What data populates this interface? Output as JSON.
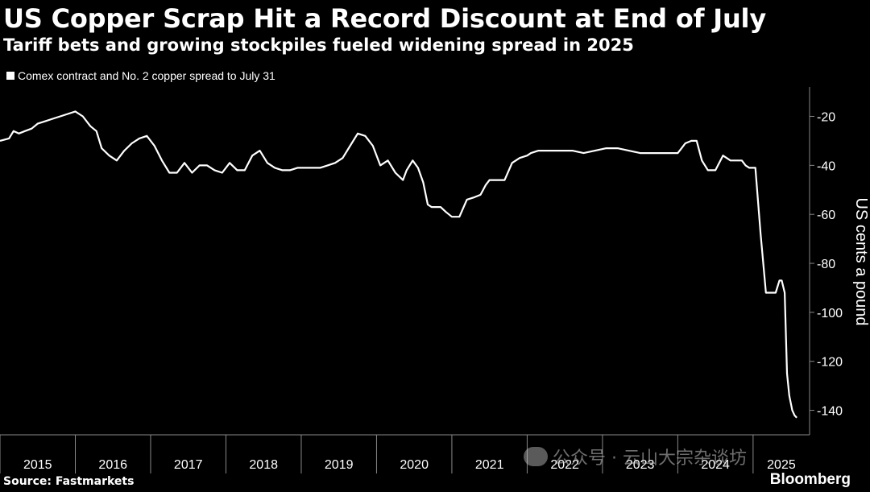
{
  "header": {
    "title": "US Copper Scrap Hit a Record Discount at End of July",
    "subtitle": "Tariff bets and growing stockpiles fueled widening spread in 2025"
  },
  "footer": {
    "source": "Source: Fastmarkets",
    "brand": "Bloomberg"
  },
  "watermark": {
    "text": "公众号 · 云山大宗杂谈坊"
  },
  "colors": {
    "background": "#000000",
    "line": "#ffffff",
    "text": "#ffffff"
  },
  "chart_data": {
    "type": "line",
    "title": "US Copper Scrap Hit a Record Discount at End of July",
    "subtitle": "Tariff bets and growing stockpiles fueled widening spread in 2025",
    "legend": [
      "Comex contract and No. 2 copper spread to July 31"
    ],
    "ylabel": "US cents a pound",
    "xlabel": "",
    "ylim": [
      -150,
      -8
    ],
    "xlim": [
      2015.0,
      2025.75
    ],
    "yticks": [
      -20,
      -40,
      -60,
      -80,
      -100,
      -120,
      -140
    ],
    "xticks": [
      "2015",
      "2016",
      "2017",
      "2018",
      "2019",
      "2020",
      "2021",
      "2022",
      "2023",
      "2024",
      "2025"
    ],
    "series": [
      {
        "name": "Comex contract and No. 2 copper spread to July 31",
        "x": [
          2015.0,
          2015.12,
          2015.18,
          2015.25,
          2015.33,
          2015.42,
          2015.5,
          2015.6,
          2015.7,
          2015.8,
          2015.9,
          2016.0,
          2016.1,
          2016.2,
          2016.28,
          2016.35,
          2016.45,
          2016.55,
          2016.65,
          2016.75,
          2016.85,
          2016.95,
          2017.05,
          2017.15,
          2017.25,
          2017.35,
          2017.45,
          2017.55,
          2017.65,
          2017.75,
          2017.85,
          2017.95,
          2018.05,
          2018.15,
          2018.25,
          2018.35,
          2018.45,
          2018.55,
          2018.65,
          2018.75,
          2018.85,
          2018.95,
          2019.05,
          2019.15,
          2019.25,
          2019.35,
          2019.45,
          2019.55,
          2019.65,
          2019.75,
          2019.85,
          2019.95,
          2020.05,
          2020.15,
          2020.25,
          2020.35,
          2020.4,
          2020.48,
          2020.55,
          2020.62,
          2020.68,
          2020.73,
          2020.78,
          2020.85,
          2020.92,
          2021.0,
          2021.1,
          2021.2,
          2021.3,
          2021.38,
          2021.45,
          2021.5,
          2021.55,
          2021.6,
          2021.7,
          2021.8,
          2021.9,
          2022.0,
          2022.05,
          2022.15,
          2022.3,
          2022.45,
          2022.6,
          2022.75,
          2022.9,
          2023.05,
          2023.2,
          2023.35,
          2023.5,
          2023.65,
          2023.8,
          2023.9,
          2024.0,
          2024.05,
          2024.1,
          2024.18,
          2024.25,
          2024.32,
          2024.4,
          2024.5,
          2024.6,
          2024.7,
          2024.78,
          2024.85,
          2024.9,
          2024.95,
          2025.0,
          2025.03,
          2025.1,
          2025.17,
          2025.25,
          2025.3,
          2025.35,
          2025.38,
          2025.42,
          2025.45,
          2025.48,
          2025.52,
          2025.55,
          2025.58
        ],
        "values": [
          -30,
          -29,
          -26,
          -27,
          -26,
          -25,
          -23,
          -22,
          -21,
          -20,
          -19,
          -18,
          -20,
          -24,
          -26,
          -33,
          -36,
          -38,
          -34,
          -31,
          -29,
          -28,
          -32,
          -38,
          -43,
          -43,
          -39,
          -43,
          -40,
          -40,
          -42,
          -43,
          -39,
          -42,
          -42,
          -36,
          -34,
          -39,
          -41,
          -42,
          -42,
          -41,
          -41,
          -41,
          -41,
          -40,
          -39,
          -37,
          -32,
          -27,
          -28,
          -32,
          -40,
          -38,
          -43,
          -46,
          -42,
          -38,
          -41,
          -47,
          -56,
          -57,
          -57,
          -57,
          -59,
          -61,
          -61,
          -54,
          -53,
          -52,
          -48,
          -46,
          -46,
          -46,
          -46,
          -39,
          -37,
          -36,
          -35,
          -34,
          -34,
          -34,
          -34,
          -35,
          -34,
          -33,
          -33,
          -34,
          -35,
          -35,
          -35,
          -35,
          -35,
          -33,
          -31,
          -30,
          -30,
          -38,
          -42,
          -42,
          -36,
          -38,
          -38,
          -38,
          -40,
          -41,
          -41,
          -41,
          -68,
          -92,
          -92,
          -92,
          -87,
          -87,
          -92,
          -125,
          -134,
          -140,
          -142,
          -143
        ]
      }
    ]
  }
}
